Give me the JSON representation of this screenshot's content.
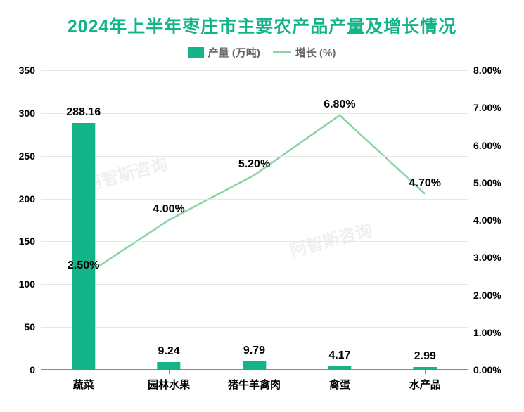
{
  "chart": {
    "type": "bar+line",
    "title": "2024年上半年枣庄市主要农产品产量及增长情况",
    "title_color": "#13b48a",
    "title_fontsize": 25,
    "title_fontweight": 900,
    "background_color": "#ffffff",
    "categories": [
      "蔬菜",
      "园林水果",
      "猪牛羊禽肉",
      "禽蛋",
      "水产品"
    ],
    "x_positions_pct": [
      10,
      30,
      50,
      70,
      90
    ],
    "series_bar": {
      "name": "产量 (万吨)",
      "values": [
        288.16,
        9.24,
        9.79,
        4.17,
        2.99
      ],
      "value_labels": [
        "288.16",
        "9.24",
        "9.79",
        "4.17",
        "2.99"
      ],
      "color": "#13b48a",
      "bar_width_pct": 5.5,
      "label_fontsize": 16,
      "label_color": "#000000",
      "axis": "left"
    },
    "series_line": {
      "name": "增长 (%)",
      "values": [
        2.5,
        4.0,
        5.2,
        6.8,
        4.7
      ],
      "value_labels": [
        "2.50%",
        "4.00%",
        "5.20%",
        "6.80%",
        "4.70%"
      ],
      "color": "#88d4a5",
      "line_width": 2.5,
      "marker_style": "none",
      "label_fontsize": 16,
      "label_color": "#000000",
      "axis": "right"
    },
    "y_left": {
      "min": 0,
      "max": 350,
      "ticks": [
        0,
        50,
        100,
        150,
        200,
        250,
        300,
        350
      ],
      "tick_labels": [
        "0",
        "50",
        "100",
        "150",
        "200",
        "250",
        "300",
        "350"
      ],
      "label_fontsize": 14,
      "label_color": "#000000"
    },
    "y_right": {
      "min": 0,
      "max": 8.0,
      "ticks": [
        0,
        1,
        2,
        3,
        4,
        5,
        6,
        7,
        8
      ],
      "tick_labels": [
        "0.00%",
        "1.00%",
        "2.00%",
        "3.00%",
        "4.00%",
        "5.00%",
        "6.00%",
        "7.00%",
        "8.00%"
      ],
      "label_fontsize": 14,
      "label_color": "#000000"
    },
    "x_axis": {
      "label_fontsize": 15,
      "label_color": "#000000",
      "axis_color": "#888888",
      "tick_color": "#888888"
    },
    "grid": {
      "show": true,
      "color": "#e6e6e6",
      "ticks": [
        50,
        100,
        150,
        200,
        250,
        300,
        350
      ]
    },
    "legend": {
      "fontsize": 15,
      "color": "#666666",
      "position": "top-center"
    },
    "watermark": {
      "text": "阿智斯咨询",
      "color": "#000000",
      "fontsize": 24
    }
  }
}
